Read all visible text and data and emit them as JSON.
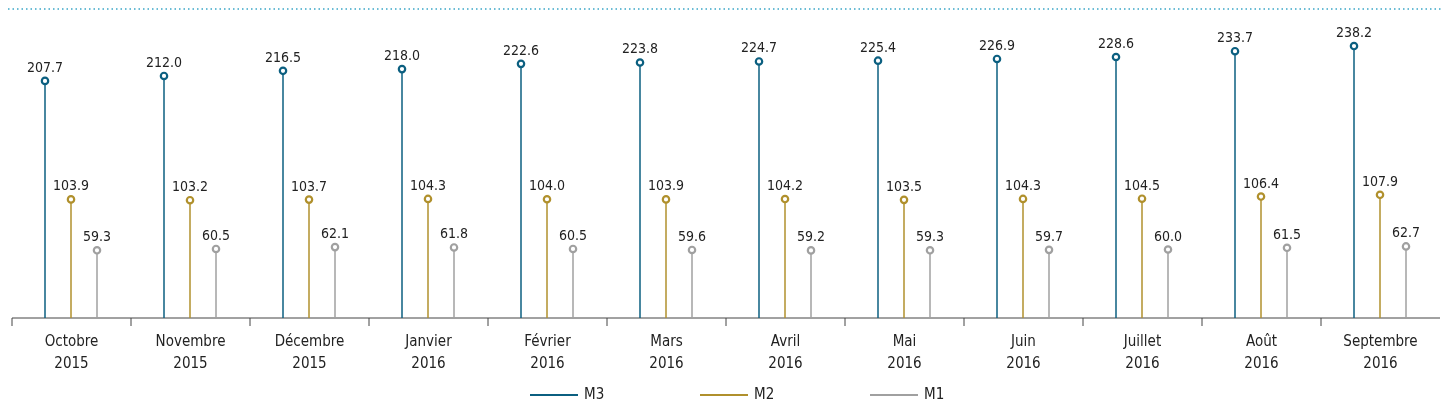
{
  "chart_data": {
    "type": "lollipop",
    "categories": [
      "Octobre 2015",
      "Novembre 2015",
      "Décembre 2015",
      "Janvier 2016",
      "Février 2016",
      "Mars 2016",
      "Avril 2016",
      "Mai 2016",
      "Juin 2016",
      "Juillet 2016",
      "Août 2016",
      "Septembre 2016"
    ],
    "series": [
      {
        "name": "M3",
        "color": "#0b5f80",
        "values": [
          207.7,
          212.0,
          216.5,
          218.0,
          222.6,
          223.8,
          224.7,
          225.4,
          226.9,
          228.6,
          233.7,
          238.2
        ],
        "value_labels": [
          "207.7",
          "212.0",
          "216.5",
          "218.0",
          "222.6",
          "223.8",
          "224.7",
          "225.4",
          "226.9",
          "228.6",
          "233.7",
          "238.2"
        ]
      },
      {
        "name": "M2",
        "color": "#b0902c",
        "values": [
          103.9,
          103.2,
          103.7,
          104.3,
          104.0,
          103.9,
          104.2,
          103.5,
          104.3,
          104.5,
          106.4,
          107.9
        ],
        "value_labels": [
          "103.9",
          "103.2",
          "103.7",
          "104.3",
          "104.0",
          "103.9",
          "104.2",
          "103.5",
          "104.3",
          "104.5",
          "106.4",
          "107.9"
        ]
      },
      {
        "name": "M1",
        "color": "#a0a0a0",
        "values": [
          59.3,
          60.5,
          62.1,
          61.8,
          60.5,
          59.6,
          59.2,
          59.3,
          59.7,
          60.0,
          61.5,
          62.7
        ],
        "value_labels": [
          "59.3",
          "60.5",
          "62.1",
          "61.8",
          "60.5",
          "59.6",
          "59.2",
          "59.3",
          "59.7",
          "60.0",
          "61.5",
          "62.7"
        ]
      }
    ],
    "ylim": [
      0,
      240
    ],
    "marker": "circle",
    "legend": "bottom"
  }
}
